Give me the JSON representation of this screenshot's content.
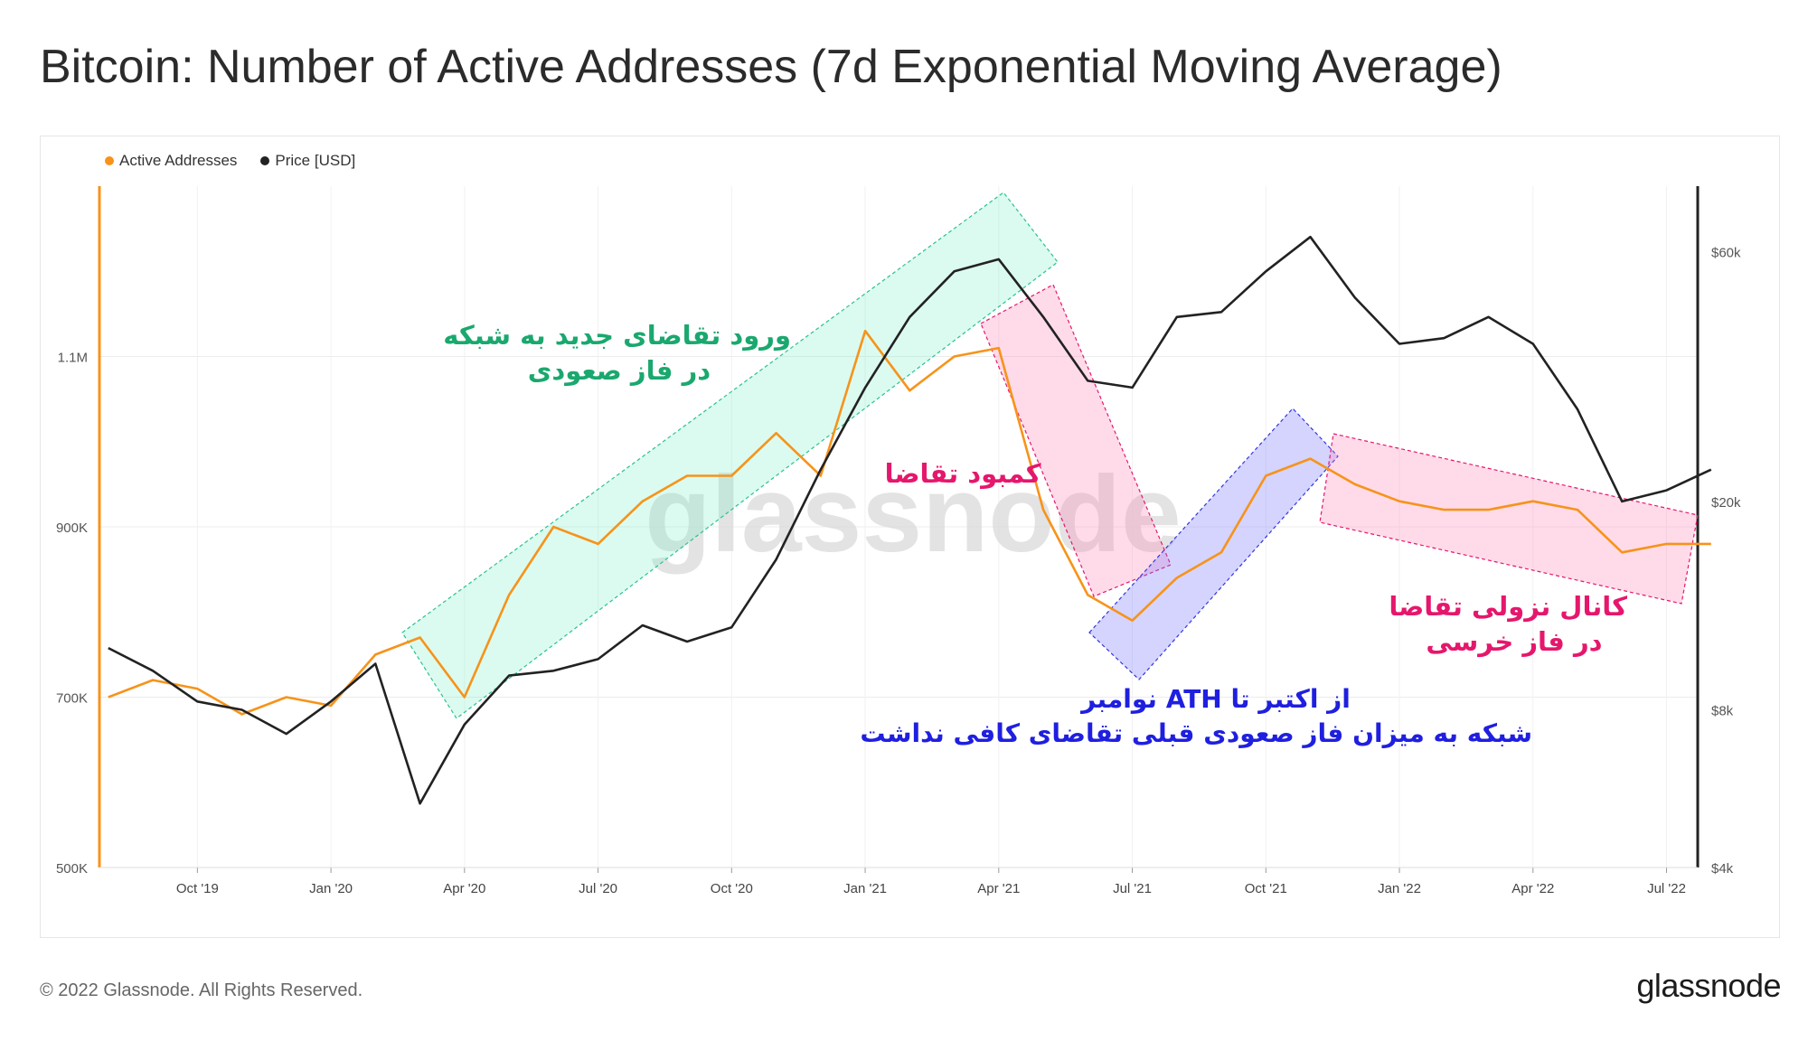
{
  "header": {
    "title": "Bitcoin: Number of Active Addresses (7d Exponential Moving Average)"
  },
  "legend": [
    {
      "label": "Active Addresses",
      "color": "#f7931a"
    },
    {
      "label": "Price [USD]",
      "color": "#222222"
    }
  ],
  "watermark": "glassnode",
  "footer": {
    "copyright": "© 2022 Glassnode. All Rights Reserved.",
    "logo": "glassnode"
  },
  "annotations": {
    "uptrend": {
      "line1": "ورود تقاضای جدید به شبکه",
      "line2": "در فاز صعودی",
      "color": "#1aa86e"
    },
    "demand_drop": {
      "line1": "کمبود تقاضا",
      "color": "#e5176c"
    },
    "ath": {
      "line1": "از اکتبر تا ATH نوامبر",
      "line2": "شبکه به میزان فاز صعودی قبلی تقاضای کافی نداشت",
      "color": "#1f1fe0"
    },
    "down_channel": {
      "line1": "کانال نزولی تقاضا",
      "line2": "در فاز خرسی",
      "color": "#e5176c"
    }
  },
  "chart_data": {
    "type": "line",
    "title": "Bitcoin: Number of Active Addresses (7d Exponential Moving Average)",
    "x_ticks": [
      "Oct '19",
      "Jan '20",
      "Apr '20",
      "Jul '20",
      "Oct '20",
      "Jan '21",
      "Apr '21",
      "Jul '21",
      "Oct '21",
      "Jan '22",
      "Apr '22",
      "Jul '22"
    ],
    "y_left": {
      "ticks": [
        "500K",
        "700K",
        "900K",
        "1.1M"
      ],
      "range": [
        500000,
        1300000
      ]
    },
    "y_right": {
      "ticks": [
        "$4k",
        "$8k",
        "$20k",
        "$60k"
      ],
      "scale": "log",
      "range": [
        4000,
        80000
      ]
    },
    "grid": true,
    "legend_position": "top-left",
    "series": [
      {
        "name": "Active Addresses",
        "axis": "left",
        "color": "#f7931a",
        "x": [
          "2019-08",
          "2019-09",
          "2019-10",
          "2019-11",
          "2019-12",
          "2020-01",
          "2020-02",
          "2020-03",
          "2020-04",
          "2020-05",
          "2020-06",
          "2020-07",
          "2020-08",
          "2020-09",
          "2020-10",
          "2020-11",
          "2020-12",
          "2021-01",
          "2021-02",
          "2021-03",
          "2021-04",
          "2021-05",
          "2021-06",
          "2021-07",
          "2021-08",
          "2021-09",
          "2021-10",
          "2021-11",
          "2021-12",
          "2022-01",
          "2022-02",
          "2022-03",
          "2022-04",
          "2022-05",
          "2022-06",
          "2022-07",
          "2022-08"
        ],
        "values": [
          700000,
          720000,
          710000,
          680000,
          700000,
          690000,
          750000,
          770000,
          700000,
          820000,
          900000,
          880000,
          930000,
          960000,
          960000,
          1010000,
          960000,
          1130000,
          1060000,
          1100000,
          1110000,
          920000,
          820000,
          790000,
          840000,
          870000,
          960000,
          980000,
          950000,
          930000,
          920000,
          920000,
          930000,
          920000,
          870000,
          880000,
          880000
        ]
      },
      {
        "name": "Price [USD]",
        "axis": "right",
        "color": "#222222",
        "x": [
          "2019-08",
          "2019-09",
          "2019-10",
          "2019-11",
          "2019-12",
          "2020-01",
          "2020-02",
          "2020-03",
          "2020-04",
          "2020-05",
          "2020-06",
          "2020-07",
          "2020-08",
          "2020-09",
          "2020-10",
          "2020-11",
          "2020-12",
          "2021-01",
          "2021-02",
          "2021-03",
          "2021-04",
          "2021-05",
          "2021-06",
          "2021-07",
          "2021-08",
          "2021-09",
          "2021-10",
          "2021-11",
          "2021-12",
          "2022-01",
          "2022-02",
          "2022-03",
          "2022-04",
          "2022-05",
          "2022-06",
          "2022-07",
          "2022-08"
        ],
        "values": [
          10500,
          9500,
          8300,
          8000,
          7200,
          8300,
          9800,
          5300,
          7500,
          9300,
          9500,
          10000,
          11600,
          10800,
          11500,
          15500,
          23000,
          33000,
          45000,
          55000,
          58000,
          45000,
          34000,
          33000,
          45000,
          46000,
          55000,
          64000,
          49000,
          40000,
          41000,
          45000,
          40000,
          30000,
          20000,
          21000,
          23000
        ]
      }
    ]
  }
}
